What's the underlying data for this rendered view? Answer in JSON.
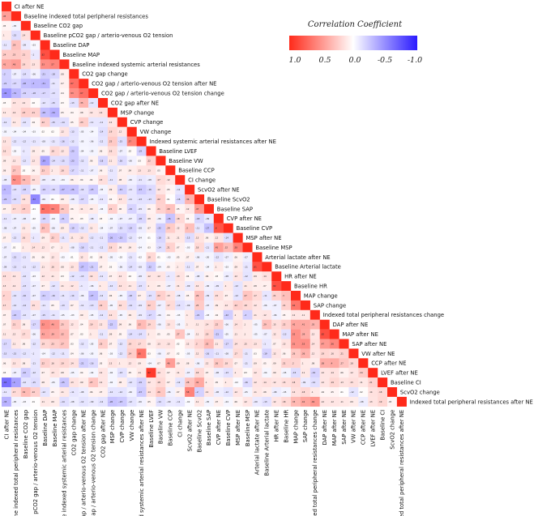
{
  "chart_data": {
    "type": "heatmap",
    "layout": "lower-triangle",
    "title": "",
    "legend": {
      "title": "Correlation Coefficient",
      "ticks": [
        "1.0",
        "0.5",
        "0.0",
        "-0.5",
        "-1.0"
      ],
      "tick_values": [
        1.0,
        0.5,
        0.0,
        -0.5,
        -1.0
      ],
      "placement": "top-right"
    },
    "colors": {
      "positive": "#ff2a1a",
      "zero": "#ffffff",
      "negative": "#2a1aff"
    },
    "value_range": [
      -1,
      1
    ],
    "variables": [
      "CI after NE",
      "Baseline indexed total peripheral resistances",
      "Baseline CO2 gap",
      "Baseline pCO2 gap / arterio-venous  O2 tension",
      "Baseline DAP",
      "Baseline MAP",
      "Baseline indexed systemic arterial resistances",
      "CO2 gap change",
      "CO2 gap / arterio-venous  O2 tension after NE",
      "CO2 gap / arterio-venous  O2 tension change",
      "CO2 gap after NE",
      "MSP change",
      "CVP change",
      "VW change",
      "Indexed systemic arterial resistances after NE",
      "Baseline LVEF",
      "Baseline VW",
      "Baseline CCP",
      "CI change",
      "ScvO2 after NE",
      "Baseline ScvO2",
      "Baseline SAP",
      "CVP after NE",
      "Baseline CVP",
      "MSP after NE",
      "Baseline MSP",
      "Arterial lactate after NE",
      "Baseline Arterial lactate",
      "HR after NE",
      "Baseline HR",
      "MAP change",
      "SAP change",
      "Indexed total peripheral resistances change",
      "DAP after NE",
      "MAP after NE",
      "SAP after NE",
      "VW after NE",
      "CCP after NE",
      "LVEF after NE",
      "Baseline CI",
      "ScvO2 change",
      "Indexed total peripheral resistances after NE"
    ],
    "matrix": [
      [
        1
      ],
      [
        0.45,
        1
      ],
      [
        0.05,
        -0.05,
        1
      ],
      [
        0.1,
        -0.15,
        0.14,
        1
      ],
      [
        -0.11,
        0.29,
        -0.09,
        -0.03,
        1
      ],
      [
        0.24,
        0.25,
        0.21,
        -0.1,
        0.82,
        1
      ],
      [
        0.41,
        0.46,
        0.19,
        0.13,
        0.53,
        0.57,
        1
      ],
      [
        -0.2,
        -0.07,
        -0.14,
        -0.06,
        -0.21,
        -0.18,
        0.08,
        1
      ],
      [
        -0.21,
        -0.17,
        -0.28,
        -0.3,
        -0.31,
        -0.11,
        0.07,
        0.67,
        1
      ],
      [
        -0.46,
        -0.31,
        -0.19,
        -0.18,
        -0.17,
        -0.13,
        0.04,
        0.53,
        0.67,
        1
      ],
      [
        0.03,
        0.13,
        0.12,
        0.02,
        -0.12,
        -0.15,
        0.03,
        -0.13,
        0.35,
        -0.12,
        1
      ],
      [
        0.11,
        0.14,
        0.23,
        0.21,
        -0.28,
        -0.34,
        0.05,
        0.04,
        0.08,
        0.12,
        0.14,
        1
      ],
      [
        -0.12,
        0.11,
        -0.12,
        0.04,
        0.22,
        -0.15,
        -0.14,
        0.05,
        0.23,
        -0.11,
        -0.11,
        0.12,
        1
      ],
      [
        -0.05,
        -0.04,
        -0.04,
        -0.03,
        0.02,
        0.02,
        0.12,
        -0.13,
        -0.05,
        -0.04,
        -0.14,
        0.19,
        0.12,
        1
      ],
      [
        0.13,
        -0.12,
        -0.12,
        -0.11,
        -0.08,
        -0.11,
        -0.16,
        -0.12,
        -0.05,
        -0.06,
        -0.12,
        0.25,
        -0.15,
        0.57,
        1
      ],
      [
        0.16,
        -0.03,
        -0.1,
        0.09,
        0.05,
        0.18,
        0.12,
        -0.23,
        -0.04,
        -0.05,
        0.06,
        0.16,
        -0.07,
        0.02,
        -0.19,
        1
      ],
      [
        0.09,
        0.12,
        -0.12,
        0.12,
        -0.39,
        -0.14,
        -0.15,
        -0.23,
        -0.12,
        0.06,
        -0.18,
        0.11,
        -0.16,
        -0.06,
        0.03,
        0.22,
        1
      ],
      [
        0.08,
        0.27,
        0.02,
        0.06,
        0.23,
        0.1,
        0.18,
        -0.17,
        -0.11,
        -0.07,
        0.06,
        -0.11,
        0.07,
        0.09,
        0.13,
        0.13,
        0.05,
        1
      ],
      [
        -0.08,
        0.52,
        0.32,
        0.16,
        -0.08,
        -0.06,
        -0.04,
        0.06,
        0.04,
        0.04,
        0.15,
        -0.11,
        0.08,
        -0.06,
        -0.11,
        -0.08,
        0.17,
        0.12,
        1
      ],
      [
        -0.3,
        -0.13,
        -0.18,
        -0.05,
        -0.19,
        -0.16,
        -0.27,
        -0.26,
        -0.14,
        -0.23,
        -0.05,
        0.09,
        -0.21,
        -0.11,
        -0.23,
        -0.16,
        0.12,
        0.05,
        -0.11,
        1
      ],
      [
        -0.24,
        -0.15,
        0.14,
        -0.52,
        -0.06,
        0.01,
        0.08,
        -0.08,
        -0.17,
        -0.05,
        -0.11,
        0.04,
        0.13,
        -0.11,
        -0.13,
        -0.13,
        0.22,
        0.01,
        -0.16,
        0.36,
        1
      ],
      [
        0.07,
        0.17,
        0.23,
        -0.01,
        0.66,
        0.59,
        0.26,
        0.06,
        0.11,
        0.09,
        -0.04,
        0.22,
        0.06,
        -0.19,
        -0.09,
        0.06,
        0.21,
        0.29,
        0.05,
        0.12,
        0.47,
        1
      ],
      [
        -0.11,
        -0.07,
        -0.08,
        -0.02,
        -0.18,
        -0.04,
        -0.21,
        0.05,
        0.03,
        -0.08,
        0.03,
        -0.04,
        -0.07,
        -0.07,
        -0.18,
        0.08,
        -0.06,
        -0.26,
        0.18,
        0.04,
        -0.18,
        -0.09,
        1
      ],
      [
        -0.08,
        -0.07,
        0.11,
        -0.05,
        0.29,
        -0.06,
        0.09,
        -0.19,
        -0.12,
        0.11,
        -0.04,
        -0.07,
        -0.15,
        -0.19,
        -0.08,
        0.07,
        -0.22,
        0.24,
        0.12,
        0.3,
        -0.11,
        -0.27,
        0.8,
        1
      ],
      [
        0.07,
        -0.12,
        0.16,
        -0.1,
        0.09,
        0.22,
        -0.11,
        0.11,
        0.13,
        -0.12,
        -0.11,
        -0.26,
        -0.23,
        -0.12,
        -0.04,
        0.01,
        -0.18,
        0.11,
        0.11,
        -0.15,
        0.13,
        0.06,
        0.12,
        -0.14,
        1
      ],
      [
        -0.07,
        0.02,
        0.1,
        0.14,
        0.12,
        0.07,
        0.1,
        -0.08,
        -0.18,
        -0.11,
        -0.12,
        0.18,
        0.08,
        0.09,
        -0.04,
        0.03,
        -0.14,
        0.21,
        0.07,
        -0.03,
        0.18,
        -0.11,
        0.45,
        0.32,
        0.58,
        1
      ],
      [
        -0.07,
        -0.15,
        -0.11,
        0.05,
        0.06,
        0.12,
        -0.03,
        0.01,
        0.12,
        0.02,
        0.08,
        -0.05,
        -0.02,
        -0.11,
        -0.02,
        0.18,
        0.01,
        -0.03,
        0.05,
        0.07,
        -0.06,
        -0.05,
        -0.12,
        -0.07,
        0.06,
        -0.07,
        1
      ],
      [
        -0.09,
        -0.13,
        -0.11,
        -0.12,
        0.11,
        0.16,
        0.08,
        0.13,
        -0.27,
        -0.21,
        0.07,
        0.03,
        -0.06,
        -0.14,
        -0.08,
        -0.22,
        -0.04,
        0.05,
        0.1,
        -0.11,
        0.07,
        -0.04,
        0.1,
        -0.03,
        0.09,
        -0.11,
        0.81,
        1
      ],
      [
        0.15,
        0.12,
        -0.12,
        -0.03,
        0.12,
        0.11,
        0.03,
        -0.12,
        -0.13,
        0.14,
        -0.11,
        0.07,
        0.12,
        0.02,
        -0.08,
        0.12,
        0.12,
        -0.1,
        0.13,
        0.04,
        -0.08,
        0.06,
        0.03,
        -0.08,
        0.12,
        -0.12,
        0.09,
        0.14,
        1
      ],
      [
        0.13,
        0.12,
        -0.13,
        -0.07,
        0.07,
        -0.12,
        0.11,
        0.12,
        -0.1,
        -0.06,
        0.1,
        -0.12,
        0.14,
        0.11,
        -0.13,
        0.1,
        0.08,
        -0.07,
        0.11,
        -0.09,
        0.12,
        -0.06,
        -0.09,
        0.1,
        -0.12,
        0.11,
        0.08,
        0.07,
        0.82,
        1
      ],
      [
        0.2,
        -0.12,
        -0.16,
        -0.07,
        -0.21,
        -0.16,
        -0.11,
        -0.14,
        -0.06,
        -0.27,
        -0.12,
        0.06,
        -0.05,
        -0.18,
        0.07,
        -0.13,
        0.22,
        0.13,
        -0.08,
        0.05,
        0.29,
        -0.09,
        0.15,
        0.07,
        -0.12,
        0.27,
        0.17,
        -0.11,
        0.21,
        0.3,
        1
      ],
      [
        0.17,
        -0.12,
        -0.14,
        0.15,
        -0.11,
        0.05,
        -0.13,
        0.07,
        -0.11,
        -0.13,
        0.22,
        -0.05,
        0.16,
        -0.14,
        -0.09,
        0.22,
        -0.07,
        0.17,
        -0.13,
        -0.09,
        0.25,
        -0.07,
        0.09,
        0.12,
        0.22,
        0.18,
        0.12,
        -0.06,
        -0.07,
        0.21,
        0.64,
        1
      ],
      [
        0.07,
        -0.22,
        -0.12,
        -0.07,
        -0.15,
        -0.11,
        -0.05,
        -0.03,
        0.09,
        -0.05,
        -0.12,
        0.14,
        -0.05,
        0.09,
        -0.09,
        -0.17,
        -0.06,
        0.04,
        -0.03,
        0.1,
        -0.21,
        -0.03,
        0.04,
        -0.22,
        0.1,
        -0.2,
        0.11,
        0.12,
        -0.06,
        0.05,
        0.12,
        0.11,
        1
      ],
      [
        0.07,
        0.21,
        0.08,
        -0.17,
        0.52,
        0.46,
        0.25,
        0.12,
        0.04,
        0.19,
        0.12,
        -0.22,
        0.09,
        0.06,
        0.32,
        0.19,
        -0.06,
        0.13,
        -0.05,
        0.1,
        0.11,
        0.14,
        0.22,
        -0.06,
        0.14,
        0.1,
        -0.05,
        0.29,
        0.15,
        0.22,
        0.42,
        0.41,
        0.35,
        1
      ],
      [
        0.11,
        0.12,
        0.17,
        -0.06,
        0.43,
        0.39,
        0.32,
        0.07,
        0.03,
        0.1,
        -0.11,
        0.09,
        0.05,
        -0.14,
        -0.14,
        0.1,
        0.05,
        0.05,
        0.27,
        -0.04,
        0.11,
        0.19,
        -0.21,
        -0.05,
        0.11,
        0.1,
        -0.05,
        -0.07,
        0.12,
        -0.13,
        0.52,
        0.39,
        0.12,
        0.82,
        1
      ],
      [
        -0.17,
        0.11,
        0.06,
        -0.12,
        0.19,
        0.23,
        0.27,
        0.03,
        -0.12,
        -0.05,
        0.23,
        0.07,
        -0.12,
        0.19,
        0.17,
        0.08,
        0.13,
        0.13,
        0.02,
        0.12,
        0.2,
        0.32,
        0.11,
        -0.17,
        0.14,
        0.15,
        0.13,
        -0.1,
        0.07,
        0.13,
        0.51,
        0.53,
        0.14,
        0.47,
        0.56,
        1
      ],
      [
        -0.15,
        -0.15,
        -0.12,
        -0.1,
        -0.04,
        -0.12,
        -0.11,
        0.04,
        -0.06,
        -0.05,
        0.06,
        -0.03,
        -0.12,
        0.24,
        0.65,
        0.03,
        -0.06,
        0.07,
        0.02,
        -0.05,
        0.12,
        -0.16,
        -0.11,
        -0.08,
        0.17,
        -0.11,
        0.03,
        -0.19,
        0.12,
        0.06,
        0.26,
        0.36,
        0.12,
        0.19,
        0.16,
        0.21,
        1
      ],
      [
        0.06,
        0.13,
        0.08,
        -0.11,
        0.22,
        0.16,
        0.19,
        0.14,
        -0.21,
        -0.16,
        0.05,
        0.13,
        0.1,
        0.12,
        0.09,
        -0.04,
        0.07,
        0.46,
        0.09,
        0.08,
        -0.06,
        0.12,
        0.26,
        0.18,
        0.07,
        -0.11,
        0.09,
        0.05,
        0.09,
        0.21,
        0.2,
        0.1,
        0.08,
        0.38,
        0.4,
        0.27,
        0.18,
        1
      ],
      [
        0.03,
        -0.07,
        -0.22,
        -0.12,
        0.07,
        0.13,
        0.08,
        -0.05,
        0.04,
        -0.04,
        0.12,
        -0.04,
        -0.13,
        0.05,
        0.11,
        0.92,
        0.14,
        0.07,
        0.11,
        -0.07,
        0.18,
        0.07,
        -0.08,
        -0.13,
        0.1,
        0.03,
        0.12,
        -0.04,
        0.09,
        -0.05,
        -0.15,
        0.11,
        -0.19,
        0.12,
        0.14,
        0.06,
        0.12,
        0.24,
        1
      ],
      [
        -0.63,
        -0.4,
        -0.12,
        -0.15,
        0.08,
        -0.05,
        -0.25,
        0.13,
        0.09,
        0.27,
        0.12,
        -0.04,
        0.08,
        -0.12,
        -0.19,
        0.12,
        0.18,
        0.07,
        -0.12,
        0.28,
        0.41,
        0.1,
        0.05,
        0.1,
        -0.02,
        -0.16,
        0.12,
        0.14,
        0.12,
        0.15,
        0.18,
        -0.09,
        -0.14,
        0.12,
        0.19,
        0.13,
        0.15,
        0.11,
        0.21,
        1
      ],
      [
        -0.11,
        0.17,
        0.32,
        0.22,
        -0.12,
        0.05,
        0.11,
        -0.11,
        -0.08,
        0.06,
        0.07,
        -0.12,
        -0.12,
        -0.06,
        -0.23,
        0.14,
        0.26,
        -0.06,
        0.07,
        0.58,
        -0.2,
        0.12,
        -0.08,
        -0.12,
        0.12,
        -0.05,
        0.11,
        0.08,
        -0.08,
        -0.05,
        0.14,
        0.18,
        0.1,
        0.04,
        0.05,
        0.01,
        -0.12,
        0.02,
        0.14,
        0.18,
        1
      ],
      [
        -0.33,
        -0.05,
        -0.03,
        0.01,
        0.11,
        0.09,
        -0.14,
        -0.08,
        -0.12,
        -0.09,
        -0.12,
        -0.26,
        -0.23,
        -0.12,
        -0.06,
        0.05,
        -0.14,
        -0.09,
        -0.11,
        -0.02,
        0.11,
        -0.05,
        0.07,
        -0.04,
        0.06,
        0.12,
        -0.09,
        -0.13,
        0.12,
        0.18,
        0.33,
        0.42,
        0.49,
        0.12,
        0.12,
        0.11,
        0.09,
        -0.08,
        0.13,
        0.19,
        0.05,
        1
      ]
    ]
  }
}
